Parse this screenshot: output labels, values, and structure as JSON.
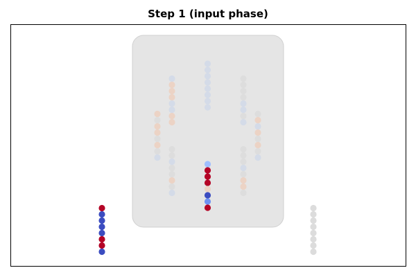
{
  "title": "Step 1 (input phase)",
  "colors": {
    "frame": "#000000",
    "chip_fill": "#e5e5e5",
    "chip_stroke": "#d0d0d0",
    "dark_red": "#b40426",
    "dark_blue": "#3b4cc0",
    "mid_blue": "#6f92f3",
    "light_blue": "#9ebeff",
    "neutral": "#dcdcdc",
    "faint_blue": "#d4dbe8",
    "faint_peach": "#ecd3c5",
    "faint_gray": "#dddddd"
  },
  "groups": [
    {
      "name": "left-input-column",
      "dots": [
        "dark_red",
        "dark_blue",
        "dark_blue",
        "dark_blue",
        "dark_blue",
        "dark_red",
        "dark_red",
        "dark_blue"
      ]
    },
    {
      "name": "right-input-column",
      "dots": [
        "neutral",
        "neutral",
        "neutral",
        "neutral",
        "neutral",
        "neutral",
        "neutral",
        "neutral"
      ]
    },
    {
      "name": "center-output-column",
      "dots": [
        "light_blue",
        "dark_red",
        "dark_red",
        "dark_red",
        "faint_peach",
        "dark_blue",
        "mid_blue",
        "dark_red"
      ]
    },
    {
      "name": "center-top-column",
      "dots": [
        "faint_blue",
        "faint_blue",
        "faint_blue",
        "faint_blue",
        "faint_blue",
        "faint_blue",
        "faint_blue",
        "faint_blue"
      ]
    },
    {
      "name": "left-upper-column",
      "dots": [
        "faint_blue",
        "faint_peach",
        "faint_peach",
        "faint_peach",
        "faint_blue",
        "faint_blue",
        "faint_peach",
        "faint_peach"
      ]
    },
    {
      "name": "left-lower-column",
      "dots": [
        "faint_gray",
        "faint_gray",
        "faint_blue",
        "faint_gray",
        "faint_gray",
        "faint_peach",
        "faint_gray",
        "faint_blue"
      ]
    },
    {
      "name": "left-side-column",
      "dots": [
        "faint_peach",
        "faint_gray",
        "faint_peach",
        "faint_peach",
        "faint_gray",
        "faint_peach",
        "faint_gray",
        "faint_blue"
      ]
    },
    {
      "name": "right-upper-column",
      "dots": [
        "faint_gray",
        "faint_gray",
        "faint_gray",
        "faint_gray",
        "faint_blue",
        "faint_blue",
        "faint_gray",
        "faint_blue"
      ]
    },
    {
      "name": "right-lower-column",
      "dots": [
        "faint_gray",
        "faint_gray",
        "faint_gray",
        "faint_blue",
        "faint_gray",
        "faint_peach",
        "faint_peach",
        "faint_gray"
      ]
    },
    {
      "name": "right-side-column",
      "dots": [
        "faint_gray",
        "faint_peach",
        "faint_blue",
        "faint_peach",
        "faint_gray",
        "faint_peach",
        "faint_gray",
        "faint_blue"
      ]
    }
  ]
}
